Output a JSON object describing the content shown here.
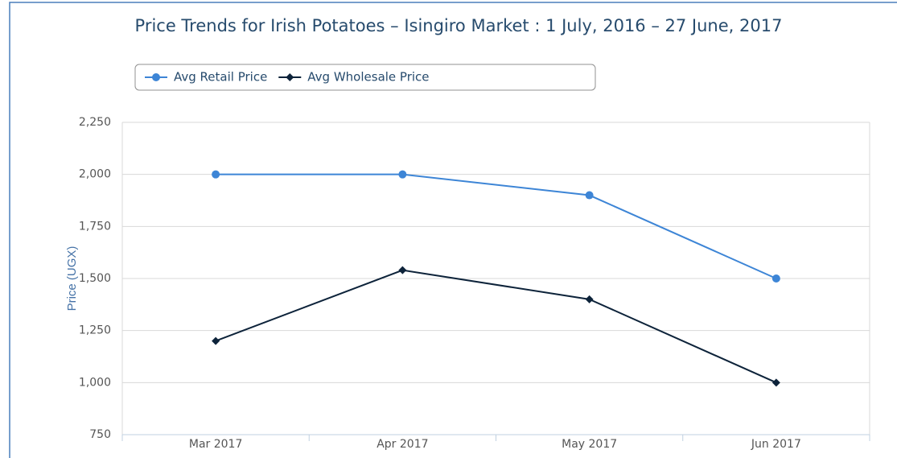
{
  "chart_data": {
    "type": "line",
    "title": "Price Trends for Irish Potatoes – Isingiro Market : 1 July, 2016 – 27 June, 2017",
    "y_label": "Price (UGX)",
    "categories": [
      "Mar 2017",
      "Apr 2017",
      "May 2017",
      "Jun 2017"
    ],
    "series": [
      {
        "name": "Avg Retail Price",
        "color": "#3d85d6",
        "marker": "circle",
        "values": [
          2000,
          2000,
          1900,
          1500
        ]
      },
      {
        "name": "Avg Wholesale Price",
        "color": "#0d233a",
        "marker": "diamond",
        "values": [
          1200,
          1540,
          1400,
          1000
        ]
      }
    ],
    "ylim": [
      750,
      2250
    ],
    "yticks": [
      {
        "value": 750,
        "label": "750"
      },
      {
        "value": 1000,
        "label": "1,000"
      },
      {
        "value": 1250,
        "label": "1,250"
      },
      {
        "value": 1500,
        "label": "1,500"
      },
      {
        "value": 1750,
        "label": "1,750"
      },
      {
        "value": 2000,
        "label": "2,000"
      },
      {
        "value": 2250,
        "label": "2,250"
      }
    ],
    "grid": true,
    "legend": "top"
  }
}
